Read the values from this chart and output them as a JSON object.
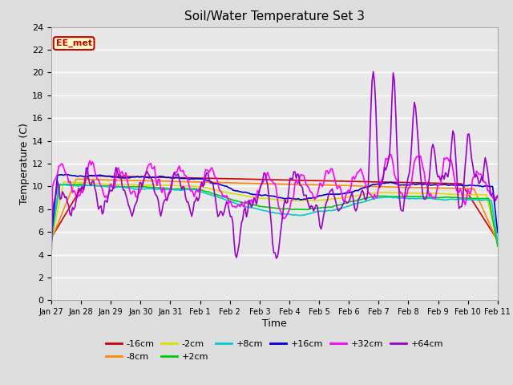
{
  "title": "Soil/Water Temperature Set 3",
  "xlabel": "Time",
  "ylabel": "Temperature (C)",
  "ylim": [
    0,
    24
  ],
  "yticks": [
    0,
    2,
    4,
    6,
    8,
    10,
    12,
    14,
    16,
    18,
    20,
    22,
    24
  ],
  "fig_bg_color": "#dddddd",
  "plot_bg_color": "#e8e8e8",
  "annotation_text": "EE_met",
  "annotation_bg": "#ffffcc",
  "annotation_border": "#cc0000",
  "series_order": [
    "-16cm",
    "-8cm",
    "-2cm",
    "+2cm",
    "+8cm",
    "+16cm",
    "+32cm",
    "+64cm"
  ],
  "series_colors": {
    "-16cm": "#cc0000",
    "-8cm": "#ff8800",
    "-2cm": "#dddd00",
    "+2cm": "#00cc00",
    "+8cm": "#00cccc",
    "+16cm": "#0000cc",
    "+32cm": "#ff00ff",
    "+64cm": "#9900cc"
  },
  "xtick_labels": [
    "Jan 27",
    "Jan 28",
    "Jan 29",
    "Jan 30",
    "Jan 31",
    "Feb 1",
    "Feb 2",
    "Feb 3",
    "Feb 4",
    "Feb 5",
    "Feb 6",
    "Feb 7",
    "Feb 8",
    "Feb 9",
    "Feb 10",
    "Feb 11"
  ],
  "n_points": 360,
  "total_days": 15
}
